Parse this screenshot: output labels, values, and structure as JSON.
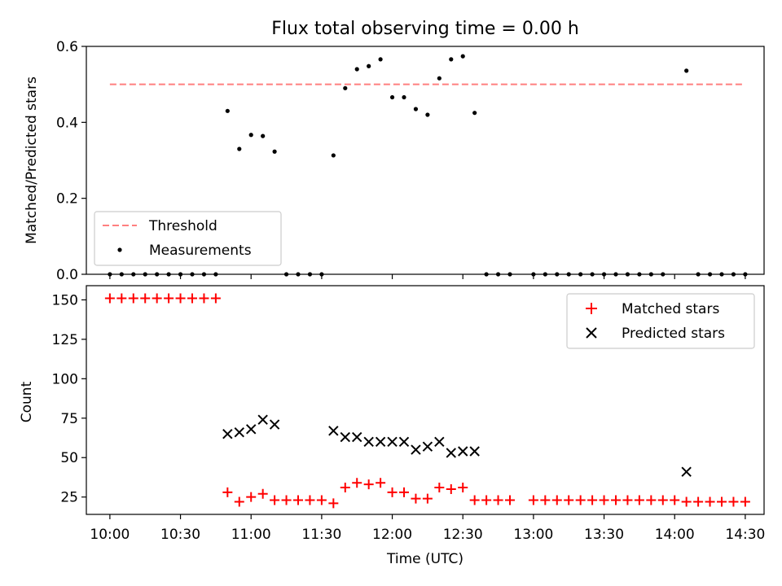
{
  "chart_data": [
    {
      "type": "scatter",
      "title": "Flux total observing time = 0.00 h",
      "xlabel": "",
      "ylabel": "Matched/Predicted stars",
      "ylim": [
        0,
        0.6
      ],
      "yticks": [
        "0.0",
        "0.2",
        "0.4",
        "0.6"
      ],
      "xlim": [
        "09:50",
        "14:38"
      ],
      "threshold": {
        "name": "Threshold",
        "value": 0.5,
        "x_start": "10:00",
        "x_end": "14:30",
        "color": "#ff7f7f"
      },
      "series": [
        {
          "name": "Measurements",
          "color": "#000000",
          "marker": "dot",
          "points": [
            [
              "10:00",
              0
            ],
            [
              "10:05",
              0
            ],
            [
              "10:10",
              0
            ],
            [
              "10:15",
              0
            ],
            [
              "10:20",
              0
            ],
            [
              "10:25",
              0
            ],
            [
              "10:30",
              0
            ],
            [
              "10:35",
              0
            ],
            [
              "10:40",
              0
            ],
            [
              "10:45",
              0
            ],
            [
              "10:50",
              0.43
            ],
            [
              "10:55",
              0.33
            ],
            [
              "11:00",
              0.367
            ],
            [
              "11:05",
              0.364
            ],
            [
              "11:10",
              0.323
            ],
            [
              "11:15",
              0
            ],
            [
              "11:20",
              0
            ],
            [
              "11:25",
              0
            ],
            [
              "11:30",
              0
            ],
            [
              "11:35",
              0.313
            ],
            [
              "11:40",
              0.49
            ],
            [
              "11:45",
              0.54
            ],
            [
              "11:50",
              0.548
            ],
            [
              "11:55",
              0.566
            ],
            [
              "12:00",
              0.466
            ],
            [
              "12:05",
              0.466
            ],
            [
              "12:10",
              0.435
            ],
            [
              "12:15",
              0.42
            ],
            [
              "12:20",
              0.516
            ],
            [
              "12:25",
              0.566
            ],
            [
              "12:30",
              0.574
            ],
            [
              "12:35",
              0.425
            ],
            [
              "12:40",
              0
            ],
            [
              "12:45",
              0
            ],
            [
              "12:50",
              0
            ],
            [
              "13:00",
              0
            ],
            [
              "13:05",
              0
            ],
            [
              "13:10",
              0
            ],
            [
              "13:15",
              0
            ],
            [
              "13:20",
              0
            ],
            [
              "13:25",
              0
            ],
            [
              "13:30",
              0
            ],
            [
              "13:35",
              0
            ],
            [
              "13:40",
              0
            ],
            [
              "13:45",
              0
            ],
            [
              "13:50",
              0
            ],
            [
              "13:55",
              0
            ],
            [
              "14:05",
              0.536
            ],
            [
              "14:10",
              0
            ],
            [
              "14:15",
              0
            ],
            [
              "14:20",
              0
            ],
            [
              "14:25",
              0
            ],
            [
              "14:30",
              0
            ]
          ]
        }
      ],
      "legend": "lower-left"
    },
    {
      "type": "scatter",
      "title": "",
      "xlabel": "Time (UTC)",
      "ylabel": "Count",
      "ylim": [
        14,
        159
      ],
      "yticks": [
        "25",
        "50",
        "75",
        "100",
        "125",
        "150"
      ],
      "xlim": [
        "09:50",
        "14:38"
      ],
      "xticks": [
        "10:00",
        "10:30",
        "11:00",
        "11:30",
        "12:00",
        "12:30",
        "13:00",
        "13:30",
        "14:00",
        "14:30"
      ],
      "series": [
        {
          "name": "Matched stars",
          "color": "#ff0000",
          "marker": "plus",
          "points": [
            [
              "10:00",
              151
            ],
            [
              "10:05",
              151
            ],
            [
              "10:10",
              151
            ],
            [
              "10:15",
              151
            ],
            [
              "10:20",
              151
            ],
            [
              "10:25",
              151
            ],
            [
              "10:30",
              151
            ],
            [
              "10:35",
              151
            ],
            [
              "10:40",
              151
            ],
            [
              "10:45",
              151
            ],
            [
              "10:50",
              28
            ],
            [
              "10:55",
              22
            ],
            [
              "11:00",
              25
            ],
            [
              "11:05",
              27
            ],
            [
              "11:10",
              23
            ],
            [
              "11:15",
              23
            ],
            [
              "11:20",
              23
            ],
            [
              "11:25",
              23
            ],
            [
              "11:30",
              23
            ],
            [
              "11:35",
              21
            ],
            [
              "11:40",
              31
            ],
            [
              "11:45",
              34
            ],
            [
              "11:50",
              33
            ],
            [
              "11:55",
              34
            ],
            [
              "12:00",
              28
            ],
            [
              "12:05",
              28
            ],
            [
              "12:10",
              24
            ],
            [
              "12:15",
              24
            ],
            [
              "12:20",
              31
            ],
            [
              "12:25",
              30
            ],
            [
              "12:30",
              31
            ],
            [
              "12:35",
              23
            ],
            [
              "12:40",
              23
            ],
            [
              "12:45",
              23
            ],
            [
              "12:50",
              23
            ],
            [
              "13:00",
              23
            ],
            [
              "13:05",
              23
            ],
            [
              "13:10",
              23
            ],
            [
              "13:15",
              23
            ],
            [
              "13:20",
              23
            ],
            [
              "13:25",
              23
            ],
            [
              "13:30",
              23
            ],
            [
              "13:35",
              23
            ],
            [
              "13:40",
              23
            ],
            [
              "13:45",
              23
            ],
            [
              "13:50",
              23
            ],
            [
              "13:55",
              23
            ],
            [
              "14:00",
              23
            ],
            [
              "14:05",
              22
            ],
            [
              "14:10",
              22
            ],
            [
              "14:15",
              22
            ],
            [
              "14:20",
              22
            ],
            [
              "14:25",
              22
            ],
            [
              "14:30",
              22
            ]
          ]
        },
        {
          "name": "Predicted stars",
          "color": "#000000",
          "marker": "x",
          "points": [
            [
              "10:50",
              65
            ],
            [
              "10:55",
              66
            ],
            [
              "11:00",
              68
            ],
            [
              "11:05",
              74
            ],
            [
              "11:10",
              71
            ],
            [
              "11:35",
              67
            ],
            [
              "11:40",
              63
            ],
            [
              "11:45",
              63
            ],
            [
              "11:50",
              60
            ],
            [
              "11:55",
              60
            ],
            [
              "12:00",
              60
            ],
            [
              "12:05",
              60
            ],
            [
              "12:10",
              55
            ],
            [
              "12:15",
              57
            ],
            [
              "12:20",
              60
            ],
            [
              "12:25",
              53
            ],
            [
              "12:30",
              54
            ],
            [
              "12:35",
              54
            ],
            [
              "14:05",
              41
            ]
          ]
        }
      ],
      "legend": "upper-right"
    }
  ]
}
